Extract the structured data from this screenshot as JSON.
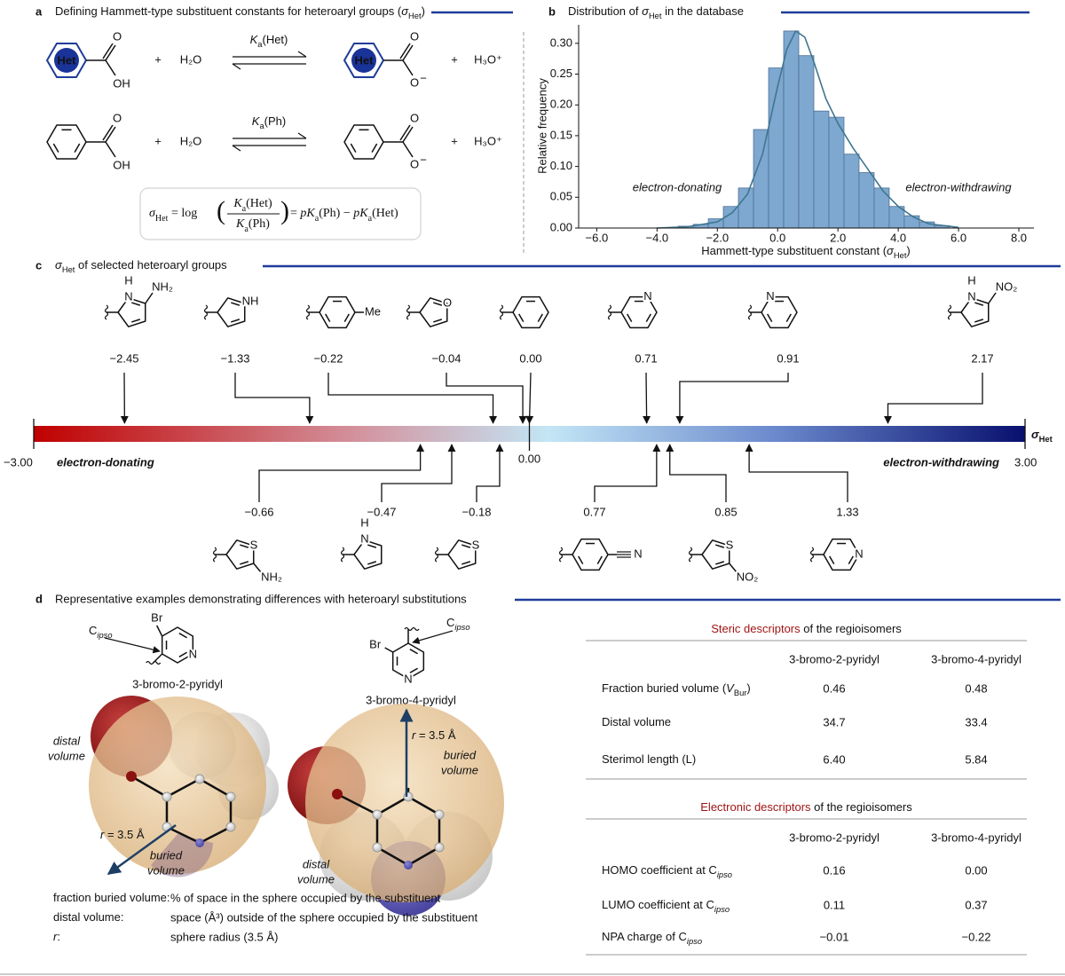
{
  "panel_a": {
    "letter": "a",
    "title": [
      "Defining Hammett-type substituent constants for heteroaryl groups (",
      "σ",
      "Het",
      ")"
    ],
    "het": "Het",
    "atoms": {
      "O": "O",
      "OH": "OH",
      "charge": "−"
    },
    "reactions": [
      {
        "plus": "+",
        "water": "H₂O",
        "constant": [
          "K",
          "a",
          "(Het)"
        ],
        "hydronium": "H₃O⁺"
      },
      {
        "plus": "+",
        "water": "H₂O",
        "constant": [
          "K",
          "a",
          "(Ph)"
        ],
        "hydronium": "H₃O⁺"
      }
    ],
    "equation": {
      "lhs": [
        "σ",
        "Het",
        " = log"
      ],
      "open": "(",
      "close": ")",
      "numerator": [
        "K",
        "a",
        "(Het)"
      ],
      "denominator": [
        "K",
        "a",
        "(Ph)"
      ],
      "rhs": [
        " = ",
        "p",
        "K",
        "a",
        "(Ph) − ",
        "p",
        "K",
        "a",
        "(Het)"
      ]
    }
  },
  "chart_data": {
    "type": "histogram",
    "letter": "b",
    "title": [
      "Distribution of ",
      "σ",
      "Het",
      " in the database"
    ],
    "xlabel": [
      "Hammett-type substituent constant (",
      "σ",
      "Het",
      ")"
    ],
    "ylabel": "Relative frequency",
    "annotations": [
      "electron-donating",
      "electron-withdrawing"
    ],
    "bins": [
      -3.3,
      -2.8,
      -2.3,
      -1.8,
      -1.3,
      -0.8,
      -0.3,
      0.2,
      0.7,
      1.2,
      1.7,
      2.2,
      2.7,
      3.2,
      3.7,
      4.2,
      4.7,
      5.2,
      5.7
    ],
    "values": [
      0.003,
      0.006,
      0.015,
      0.035,
      0.065,
      0.16,
      0.26,
      0.32,
      0.28,
      0.19,
      0.18,
      0.12,
      0.09,
      0.065,
      0.035,
      0.02,
      0.01,
      0.004
    ],
    "color": "#7ea8cf",
    "edge_color": "#4d6f94",
    "density": {
      "x": [
        -4,
        -3,
        -2,
        -1.5,
        -1,
        -0.5,
        0,
        0.3,
        0.6,
        0.9,
        1.2,
        1.6,
        2,
        2.5,
        3,
        3.5,
        4,
        4.5,
        5,
        6
      ],
      "values": [
        0,
        0.002,
        0.01,
        0.025,
        0.055,
        0.12,
        0.23,
        0.29,
        0.32,
        0.31,
        0.27,
        0.21,
        0.17,
        0.13,
        0.095,
        0.06,
        0.035,
        0.018,
        0.007,
        0.001
      ],
      "color": "#3f7690"
    },
    "xlim": [
      -6.6,
      8.5
    ],
    "ylim": [
      0,
      0.33
    ],
    "xticks": [
      {
        "value": -6,
        "label": "−6.0"
      },
      {
        "value": -4,
        "label": "−4.0"
      },
      {
        "value": -2,
        "label": "−2.0"
      },
      {
        "value": 0,
        "label": "0.0"
      },
      {
        "value": 2,
        "label": "2.0"
      },
      {
        "value": 4,
        "label": "4.0"
      },
      {
        "value": 6,
        "label": "6.0"
      },
      {
        "value": 8,
        "label": "8.0"
      }
    ],
    "yticks": [
      {
        "value": 0,
        "label": "0.00"
      },
      {
        "value": 0.05,
        "label": "0.05"
      },
      {
        "value": 0.1,
        "label": "0.10"
      },
      {
        "value": 0.15,
        "label": "0.15"
      },
      {
        "value": 0.2,
        "label": "0.20"
      },
      {
        "value": 0.25,
        "label": "0.25"
      },
      {
        "value": 0.3,
        "label": "0.30"
      }
    ]
  },
  "panel_c": {
    "letter": "c",
    "title": [
      "σ",
      "Het",
      " of selected heteroaryl groups"
    ],
    "scale": {
      "min": -3,
      "max": 3,
      "min_label": "−3.00",
      "max_label": "3.00",
      "zero": 0,
      "zero_label": "0.00",
      "symbol": [
        "σ",
        "Het"
      ],
      "left": "electron-donating",
      "right": "electron-withdrawing"
    },
    "groups": {
      "values": [
        -2.45,
        -1.33,
        -0.22,
        -0.04,
        0.0,
        0.71,
        0.91,
        2.17,
        -0.66,
        -0.47,
        -0.18,
        0.77,
        0.85,
        1.33
      ],
      "value_labels": [
        "−2.45",
        "−1.33",
        "−0.22",
        "−0.04",
        "0.00",
        "0.71",
        "0.91",
        "2.17",
        "−0.66",
        "−0.47",
        "−0.18",
        "0.77",
        "0.85",
        "1.33"
      ],
      "atoms": [
        [
          "H",
          "N",
          "NH₂"
        ],
        [
          "NH"
        ],
        [
          "Me"
        ],
        [
          "O"
        ],
        [],
        [
          "N"
        ],
        [
          "N"
        ],
        [
          "H",
          "N",
          "NO₂"
        ],
        [
          "S",
          "NH₂"
        ],
        [
          "H",
          "N"
        ],
        [
          "S"
        ],
        [
          "N"
        ],
        [
          "S",
          "NO₂"
        ],
        [
          "N"
        ]
      ]
    }
  },
  "panel_d": {
    "letter": "d",
    "title": "Representative examples demonstrating differences with heteroaryl substitutions",
    "structures": [
      {
        "name": "3-bromo-2-pyridyl",
        "Br": "Br",
        "N": "N",
        "ipso": [
          "C",
          "ipso"
        ]
      },
      {
        "name": "3-bromo-4-pyridyl",
        "Br": "Br",
        "N": "N",
        "ipso": [
          "C",
          "ipso"
        ]
      }
    ],
    "models": [
      {
        "distal": [
          "distal",
          "volume"
        ],
        "radius": [
          "r",
          " = 3.5 Å"
        ],
        "buried": [
          "buried",
          "volume"
        ]
      },
      {
        "distal": [
          "distal",
          "volume"
        ],
        "radius": [
          "r",
          " = 3.5 Å"
        ],
        "buried": [
          "buried",
          "volume"
        ]
      }
    ],
    "definitions": [
      {
        "term": [
          "fraction buried volume:"
        ],
        "text": "% of space in the sphere occupied by the substituent"
      },
      {
        "term": [
          "distal volume:"
        ],
        "text": "space (Å³) outside of the sphere occupied by the substituent"
      },
      {
        "term": [
          "r",
          ":"
        ],
        "text": "sphere radius (3.5 Å)"
      }
    ],
    "tables": [
      {
        "title": [
          "Steric descriptors",
          " of the regioisomers"
        ],
        "columns": [
          "3-bromo-2-pyridyl",
          "3-bromo-4-pyridyl"
        ],
        "rows": [
          {
            "label": [
              "Fraction buried volume (",
              "V",
              "Bur",
              ")"
            ],
            "cells": [
              "0.46",
              "0.48"
            ]
          },
          {
            "label": [
              "Distal volume"
            ],
            "cells": [
              "34.7",
              "33.4"
            ]
          },
          {
            "label": [
              "Sterimol length (L)"
            ],
            "cells": [
              "6.40",
              "5.84"
            ]
          }
        ]
      },
      {
        "title": [
          "Electronic descriptors",
          " of the regioisomers"
        ],
        "columns": [
          "3-bromo-2-pyridyl",
          "3-bromo-4-pyridyl"
        ],
        "rows": [
          {
            "label": [
              "HOMO coefficient at C",
              "ipso"
            ],
            "cells": [
              "0.16",
              "0.00"
            ]
          },
          {
            "label": [
              "LUMO coefficient at C",
              "ipso"
            ],
            "cells": [
              "0.11",
              "0.37"
            ]
          },
          {
            "label": [
              "NPA charge of C",
              "ipso"
            ],
            "cells": [
              "−0.01",
              "−0.22"
            ]
          }
        ]
      }
    ]
  }
}
